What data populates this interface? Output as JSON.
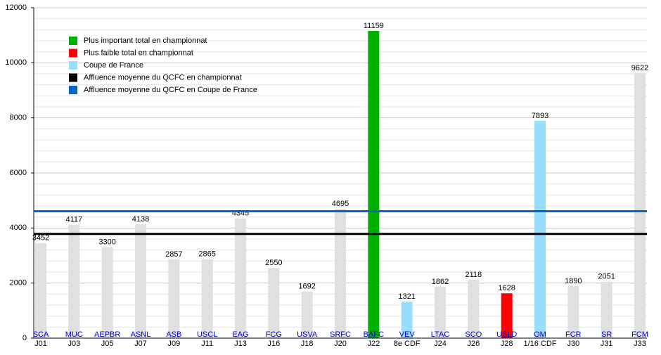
{
  "chart_data": {
    "type": "bar",
    "teams": [
      "SCA",
      "MUC",
      "AEPBR",
      "ASNL",
      "ASB",
      "USCL",
      "EAG",
      "FCG",
      "USVA",
      "SRFC",
      "BAFC",
      "VEV",
      "LTAC",
      "SCO",
      "USLD",
      "OM",
      "FCR",
      "SR",
      "FCM"
    ],
    "categories": [
      "J01",
      "J03",
      "J05",
      "J07",
      "J09",
      "J11",
      "J13",
      "J16",
      "J18",
      "J20",
      "J22",
      "8e CDF",
      "J24",
      "J26",
      "J28",
      "1/16 CDF",
      "J30",
      "J31",
      "J33"
    ],
    "values": [
      3452,
      4117,
      3300,
      4138,
      2857,
      2865,
      4345,
      2550,
      1692,
      4695,
      11159,
      1321,
      1862,
      2118,
      1628,
      7893,
      1890,
      2051,
      9622
    ],
    "colors": [
      "#e0e0e0",
      "#e0e0e0",
      "#e0e0e0",
      "#e0e0e0",
      "#e0e0e0",
      "#e0e0e0",
      "#e0e0e0",
      "#e0e0e0",
      "#e0e0e0",
      "#e0e0e0",
      "#00b000",
      "#99ddff",
      "#e0e0e0",
      "#e0e0e0",
      "#ff0000",
      "#99ddff",
      "#e0e0e0",
      "#e0e0e0",
      "#e0e0e0"
    ],
    "ylim": [
      0,
      12000
    ],
    "yticks": [
      0,
      2000,
      4000,
      6000,
      8000,
      10000,
      12000
    ],
    "minor_yticks": [
      400,
      800,
      1200,
      1600,
      2400,
      2800,
      3200,
      3600,
      4400,
      4800,
      5200,
      5600,
      6400,
      6800,
      7200,
      7600,
      8400,
      8800,
      9200,
      9600,
      10400,
      10800,
      11200,
      11600
    ],
    "grid": true,
    "legend": [
      {
        "name": "Plus important total en championnat",
        "color": "#00b000"
      },
      {
        "name": "Plus faible total en championnat",
        "color": "#ff0000"
      },
      {
        "name": "Coupe de France",
        "color": "#99ddff"
      },
      {
        "name": "Affluence moyenne du QCFC en championnat",
        "color": "#000000",
        "value": 3785
      },
      {
        "name": "Affluence moyenne du QCFC en Coupe de France",
        "color": "#0066cc",
        "value": 4607
      }
    ]
  }
}
